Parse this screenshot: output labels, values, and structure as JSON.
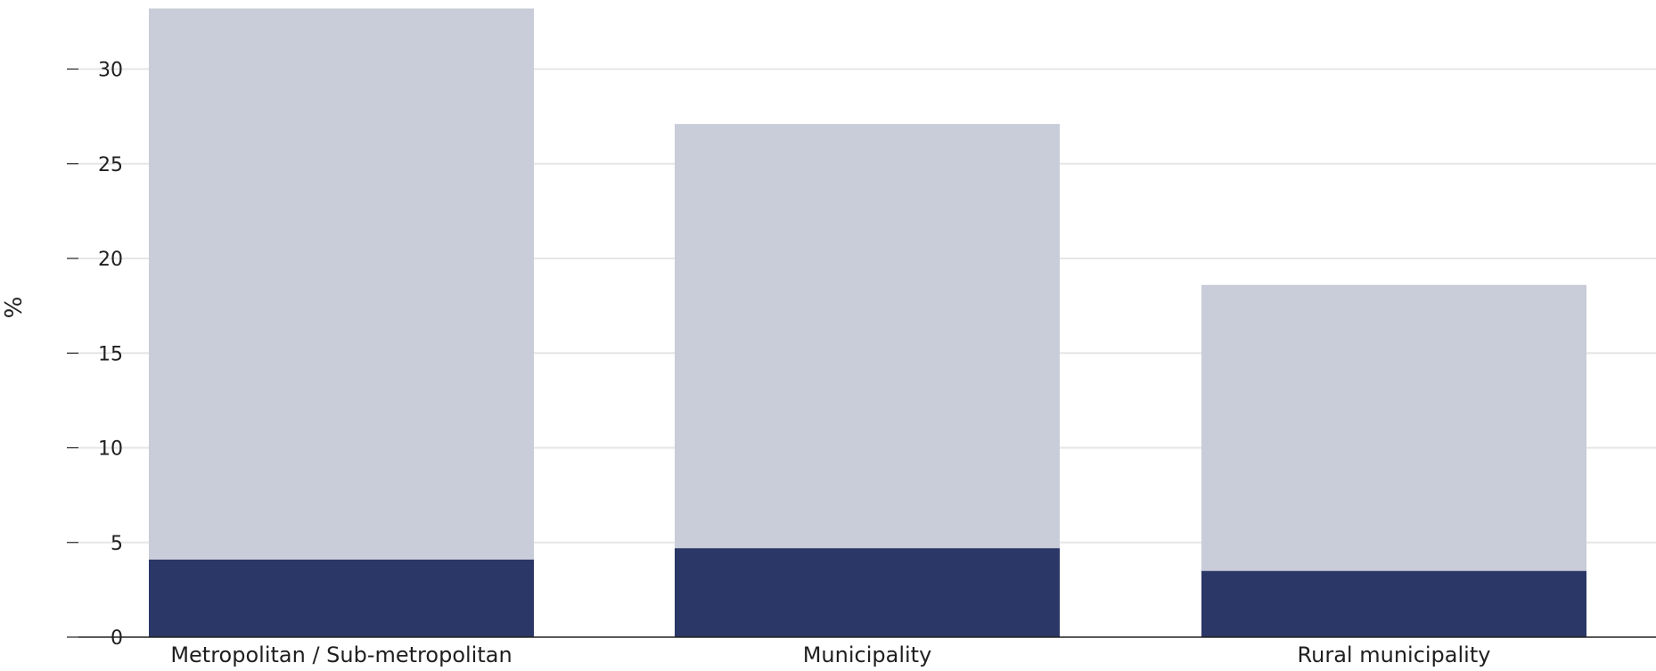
{
  "chart_data": {
    "type": "bar",
    "stacked": true,
    "categories": [
      "Metropolitan / Sub-metropolitan",
      "Municipality",
      "Rural municipality"
    ],
    "series": [
      {
        "values": [
          4.1,
          4.7,
          3.5
        ],
        "color": "#2b3766"
      },
      {
        "values": [
          29.1,
          22.4,
          15.1
        ],
        "color": "#c9ccd9"
      }
    ],
    "totals": [
      33.2,
      27.1,
      18.6
    ],
    "ylabel": "%",
    "xlabel": "",
    "yticks": [
      0,
      5,
      10,
      15,
      20,
      25,
      30
    ],
    "ylim": [
      0,
      33.2
    ],
    "grid": true,
    "legend": "none"
  }
}
